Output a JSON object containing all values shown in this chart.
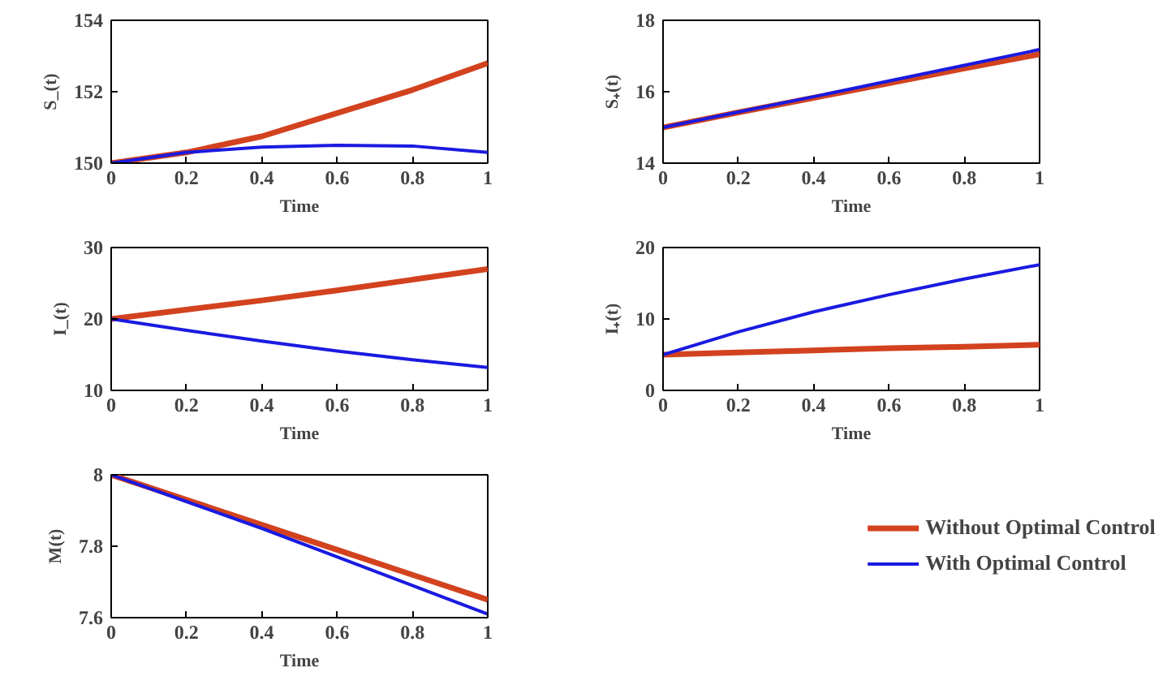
{
  "chart_data": [
    {
      "type": "line",
      "xlabel": "Time",
      "ylabel": "S_(t)",
      "x": [
        0,
        0.2,
        0.4,
        0.6,
        0.8,
        1
      ],
      "xlim": [
        0,
        1
      ],
      "xticks": [
        0,
        0.2,
        0.4,
        0.6,
        0.8,
        1
      ],
      "ylim": [
        150,
        154
      ],
      "yticks": [
        150,
        152,
        154
      ],
      "grid": false,
      "series": [
        {
          "color": "#d2421e",
          "values": [
            150,
            150.3,
            150.75,
            151.4,
            152.05,
            152.8
          ]
        },
        {
          "color": "#1a1ae0",
          "values": [
            150,
            150.3,
            150.45,
            150.5,
            150.48,
            150.3
          ]
        }
      ]
    },
    {
      "type": "line",
      "xlabel": "Time",
      "ylabel": "S₊(t)",
      "x": [
        0,
        0.2,
        0.4,
        0.6,
        0.8,
        1
      ],
      "xlim": [
        0,
        1
      ],
      "xticks": [
        0,
        0.2,
        0.4,
        0.6,
        0.8,
        1
      ],
      "ylim": [
        14,
        18
      ],
      "yticks": [
        14,
        16,
        18
      ],
      "grid": false,
      "series": [
        {
          "color": "#d2421e",
          "values": [
            15,
            15.42,
            15.83,
            16.24,
            16.65,
            17.05
          ]
        },
        {
          "color": "#1a1ae0",
          "values": [
            15,
            15.43,
            15.86,
            16.3,
            16.74,
            17.18
          ]
        }
      ]
    },
    {
      "type": "line",
      "xlabel": "Time",
      "ylabel": "I_(t)",
      "x": [
        0,
        0.2,
        0.4,
        0.6,
        0.8,
        1
      ],
      "xlim": [
        0,
        1
      ],
      "xticks": [
        0,
        0.2,
        0.4,
        0.6,
        0.8,
        1
      ],
      "ylim": [
        10,
        30
      ],
      "yticks": [
        10,
        20,
        30
      ],
      "grid": false,
      "series": [
        {
          "color": "#d2421e",
          "values": [
            20,
            21.3,
            22.6,
            24.0,
            25.5,
            27.0
          ]
        },
        {
          "color": "#1a1ae0",
          "values": [
            20,
            18.4,
            16.9,
            15.5,
            14.3,
            13.2
          ]
        }
      ]
    },
    {
      "type": "line",
      "xlabel": "Time",
      "ylabel": "I₊(t)",
      "x": [
        0,
        0.2,
        0.4,
        0.6,
        0.8,
        1
      ],
      "xlim": [
        0,
        1
      ],
      "xticks": [
        0,
        0.2,
        0.4,
        0.6,
        0.8,
        1
      ],
      "ylim": [
        0,
        20
      ],
      "yticks": [
        0,
        10,
        20
      ],
      "grid": false,
      "series": [
        {
          "color": "#d2421e",
          "values": [
            5,
            5.3,
            5.6,
            5.9,
            6.1,
            6.4
          ]
        },
        {
          "color": "#1a1ae0",
          "values": [
            5,
            8.2,
            11.0,
            13.4,
            15.6,
            17.6
          ]
        }
      ]
    },
    {
      "type": "line",
      "xlabel": "Time",
      "ylabel": "M(t)",
      "x": [
        0,
        0.2,
        0.4,
        0.6,
        0.8,
        1
      ],
      "xlim": [
        0,
        1
      ],
      "xticks": [
        0,
        0.2,
        0.4,
        0.6,
        0.8,
        1
      ],
      "ylim": [
        7.6,
        8
      ],
      "yticks": [
        7.6,
        7.8,
        8
      ],
      "grid": false,
      "legend": "right",
      "series": [
        {
          "name": "Without Optimal Control",
          "color": "#d2421e",
          "values": [
            8,
            7.93,
            7.86,
            7.79,
            7.72,
            7.65
          ]
        },
        {
          "name": "With Optimal Control",
          "color": "#1a1ae0",
          "values": [
            8,
            7.925,
            7.85,
            7.77,
            7.69,
            7.61
          ]
        }
      ]
    }
  ]
}
